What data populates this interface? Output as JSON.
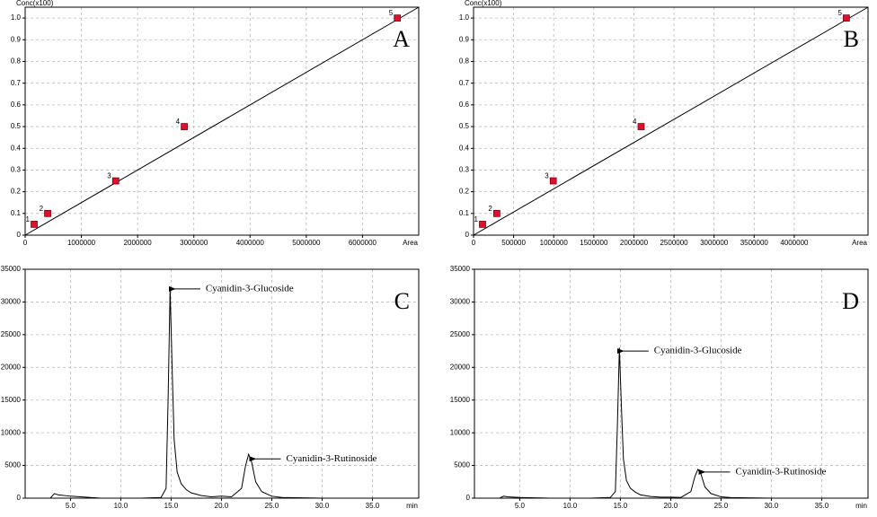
{
  "chart_data": [
    {
      "type": "scatter",
      "panel_label": "A",
      "ylabel": "Conc(x100)",
      "xlabel": "Area",
      "x": [
        160000,
        400000,
        1610000,
        2830000,
        6620000
      ],
      "y": [
        0.05,
        0.1,
        0.25,
        0.5,
        1
      ],
      "point_labels": [
        "1",
        "2",
        "3",
        "4",
        "5"
      ],
      "color": "#e0102a",
      "fit_line": {
        "x": [
          0,
          7000000
        ],
        "y": [
          0,
          1.05
        ],
        "color": "#000000"
      },
      "xlim": [
        0,
        7000000
      ],
      "ylim": [
        0,
        1.05
      ],
      "xticks": [
        0,
        1000000,
        2000000,
        3000000,
        4000000,
        5000000,
        6000000
      ],
      "yticks": [
        0,
        0.1,
        0.2,
        0.3,
        0.4,
        0.5,
        0.6,
        0.7,
        0.8,
        0.9,
        {
          "value": 1,
          "label": "1.0"
        }
      ],
      "grid": true
    },
    {
      "type": "scatter",
      "panel_label": "B",
      "ylabel": "Conc(x100)",
      "xlabel": "Area",
      "x": [
        112000,
        290000,
        994000,
        2090000,
        4650000
      ],
      "y": [
        0.05,
        0.1,
        0.25,
        0.5,
        1
      ],
      "point_labels": [
        "1",
        "2",
        "3",
        "4",
        "5"
      ],
      "color": "#e0102a",
      "fit_line": {
        "x": [
          0,
          4920000
        ],
        "y": [
          0,
          1.05
        ],
        "color": "#000000"
      },
      "xlim": [
        0,
        4920000
      ],
      "ylim": [
        0,
        1.05
      ],
      "xticks": [
        0,
        500000,
        1000000,
        1500000,
        2000000,
        2500000,
        3000000,
        3500000,
        4000000
      ],
      "yticks": [
        0,
        0.1,
        0.2,
        0.3,
        0.4,
        0.5,
        0.6,
        0.7,
        0.8,
        0.9,
        {
          "value": 1,
          "label": "1.0"
        }
      ],
      "grid": true
    },
    {
      "type": "line",
      "panel_label": "C",
      "xlabel": "min",
      "x": [
        0.5,
        3.0,
        3.4,
        3.8,
        5,
        8,
        10,
        12,
        14,
        14.5,
        14.7,
        14.9,
        15.1,
        15.3,
        15.6,
        16,
        16.5,
        17,
        18,
        19,
        20,
        21,
        22,
        22.4,
        22.7,
        23.0,
        23.4,
        24,
        25,
        26,
        30,
        35,
        39.6
      ],
      "y": [
        0,
        0,
        700,
        500,
        300,
        0,
        0,
        0,
        100,
        1500,
        15000,
        32000,
        20000,
        9000,
        4000,
        2200,
        1300,
        800,
        400,
        200,
        300,
        200,
        1500,
        5000,
        6700,
        5500,
        2500,
        1000,
        300,
        100,
        0,
        0,
        0
      ],
      "color": "#000000",
      "annotations": [
        {
          "text": "Cyanidin-3-Glucoside",
          "x": 15.4,
          "y": 32000
        },
        {
          "text": "Cyanidin-3-Rutinoside",
          "x": 23.4,
          "y": 6000
        }
      ],
      "xlim": [
        0.5,
        39.6
      ],
      "ylim": [
        0,
        35000
      ],
      "xticks": [
        {
          "value": 5,
          "label": "5.0"
        },
        {
          "value": 10,
          "label": "10.0"
        },
        {
          "value": 15,
          "label": "15.0"
        },
        {
          "value": 20,
          "label": "20.0"
        },
        {
          "value": 25,
          "label": "25.0"
        },
        {
          "value": 30,
          "label": "30.0"
        },
        {
          "value": 35,
          "label": "35.0"
        }
      ],
      "yticks": [
        0,
        5000,
        10000,
        15000,
        20000,
        25000,
        30000,
        35000
      ],
      "grid": true
    },
    {
      "type": "line",
      "panel_label": "D",
      "xlabel": "min",
      "x": [
        0.5,
        3.0,
        3.4,
        3.8,
        5,
        8,
        10,
        12,
        14,
        14.5,
        14.7,
        14.9,
        15.1,
        15.3,
        15.6,
        16,
        16.5,
        17,
        18,
        19,
        20,
        21,
        22,
        22.4,
        22.7,
        23.0,
        23.4,
        24,
        25,
        26,
        30,
        35,
        39.6
      ],
      "y": [
        0,
        0,
        300,
        200,
        100,
        0,
        0,
        0,
        100,
        1000,
        11000,
        23000,
        14000,
        6000,
        2700,
        1500,
        900,
        500,
        250,
        150,
        150,
        100,
        1000,
        3300,
        4400,
        3700,
        1700,
        700,
        200,
        80,
        0,
        0,
        0
      ],
      "color": "#000000",
      "annotations": [
        {
          "text": "Cyanidin-3-Glucoside",
          "x": 15.3,
          "y": 22500
        },
        {
          "text": "Cyanidin-3-Rutinoside",
          "x": 23.4,
          "y": 4000
        }
      ],
      "xlim": [
        0.5,
        39.6
      ],
      "ylim": [
        0,
        35000
      ],
      "xticks": [
        {
          "value": 5,
          "label": "5.0"
        },
        {
          "value": 10,
          "label": "10.0"
        },
        {
          "value": 15,
          "label": "15.0"
        },
        {
          "value": 20,
          "label": "20.0"
        },
        {
          "value": 25,
          "label": "25.0"
        },
        {
          "value": 30,
          "label": "30.0"
        },
        {
          "value": 35,
          "label": "35.0"
        }
      ],
      "yticks": [
        0,
        5000,
        10000,
        15000,
        20000,
        25000,
        30000,
        35000
      ],
      "grid": true
    }
  ]
}
